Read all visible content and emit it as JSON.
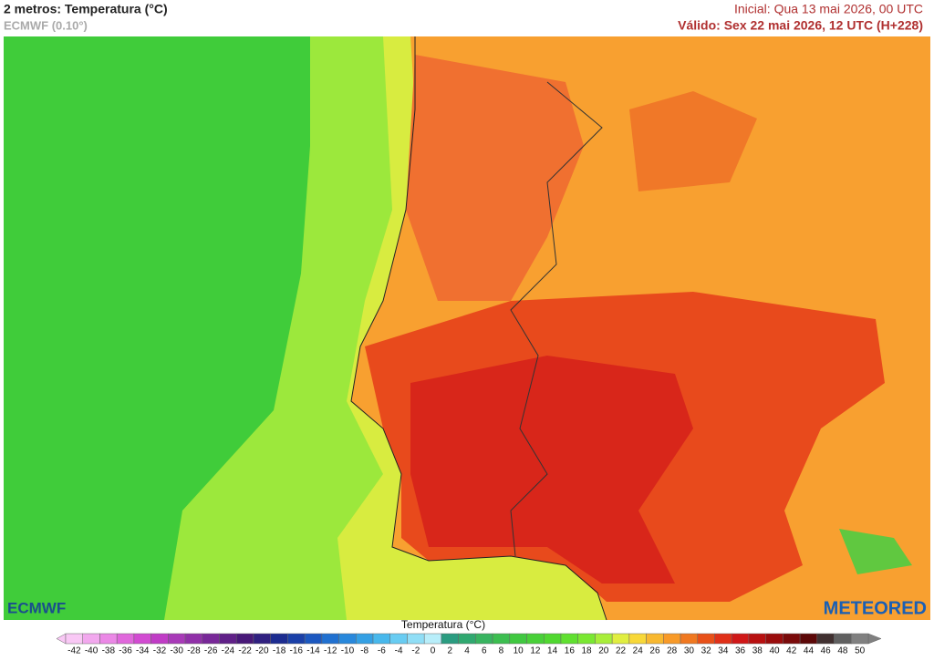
{
  "header": {
    "title": "2 metros: Temperatura (°C)",
    "model": "ECMWF (0.10°)",
    "initial": "Inicial: Qua 13 mai 2026, 00 UTC",
    "valid": "Válido: Sex 22 mai 2026, 12 UTC (H+228)"
  },
  "logos": {
    "left": "ECMWF",
    "right": "METEORED"
  },
  "legend": {
    "title": "Temperatura (°C)",
    "ticks": [
      -42,
      -40,
      -38,
      -36,
      -34,
      -32,
      -30,
      -28,
      -26,
      -24,
      -22,
      -20,
      -18,
      -16,
      -14,
      -12,
      -10,
      -8,
      -6,
      -4,
      -2,
      0,
      2,
      4,
      6,
      8,
      10,
      12,
      14,
      16,
      18,
      20,
      22,
      24,
      26,
      28,
      30,
      32,
      34,
      36,
      38,
      40,
      42,
      44,
      46,
      48,
      50
    ],
    "colors": [
      "#f9c8f5",
      "#f2a8ee",
      "#eb88e6",
      "#e068dc",
      "#d24bd2",
      "#c03cc6",
      "#a83ab8",
      "#9030a8",
      "#782898",
      "#602088",
      "#481878",
      "#302080",
      "#1c2c90",
      "#1a40a8",
      "#1c58c0",
      "#2070d0",
      "#2888dc",
      "#34a0e4",
      "#48b8ec",
      "#68ccf2",
      "#90def6",
      "#b8eefa",
      "#2a9c80",
      "#30a870",
      "#38b460",
      "#3cbe50",
      "#40c840",
      "#48d038",
      "#50d830",
      "#60e030",
      "#7ae832",
      "#a8ee3a",
      "#e0ee40",
      "#f8d838",
      "#f8b830",
      "#f89a28",
      "#f07820",
      "#e85018",
      "#e03018",
      "#d01818",
      "#b81010",
      "#9a0c0c",
      "#7a0a0a",
      "#5c0808",
      "#403030",
      "#606060",
      "#808080"
    ]
  }
}
